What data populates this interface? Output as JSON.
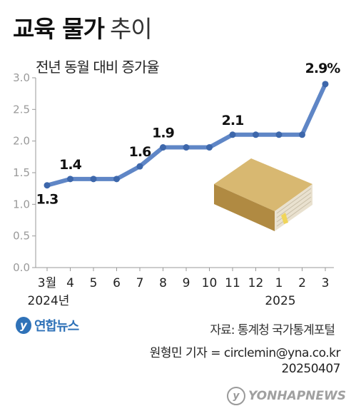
{
  "title_bold": "교육 물가",
  "title_light": "추이",
  "subtitle": "전년 동월 대비 증가율",
  "colors": {
    "line": "#5f86c6",
    "marker": "#3d67ab",
    "axis": "#9a9a9a"
  },
  "chart_data": {
    "type": "line",
    "title": "교육 물가 추이",
    "ylabel": "전년 동월 대비 증가율",
    "ylim": [
      0,
      3.0
    ],
    "y_ticks": [
      "0.0",
      "0.5",
      "1.0",
      "1.5",
      "2.0",
      "2.5",
      "3.0"
    ],
    "categories": [
      "3월",
      "4",
      "5",
      "6",
      "7",
      "8",
      "9",
      "10",
      "11",
      "12",
      "1",
      "2",
      "3"
    ],
    "year_labels": [
      {
        "index": 0,
        "text": "2024년"
      },
      {
        "index": 10,
        "text": "2025"
      }
    ],
    "values": [
      1.3,
      1.4,
      1.4,
      1.4,
      1.6,
      1.9,
      1.9,
      1.9,
      2.1,
      2.1,
      2.1,
      2.1,
      2.9
    ],
    "data_labels": [
      {
        "index": 0,
        "text": "1.3"
      },
      {
        "index": 1,
        "text": "1.4"
      },
      {
        "index": 4,
        "text": "1.6"
      },
      {
        "index": 5,
        "text": "1.9"
      },
      {
        "index": 8,
        "text": "2.1"
      },
      {
        "index": 12,
        "text": "2.9%"
      }
    ],
    "grid": false
  },
  "source": "자료: 통계청 국가통계포털",
  "credit_line1": "원형민 기자 = circlemin@yna.co.kr",
  "credit_line2": "20250407",
  "logo_text": "연합뉴스",
  "watermark_text": "YONHAPNEWS",
  "icons": [
    "book-icon",
    "yonhap-logo-icon",
    "yonhap-watermark-icon"
  ]
}
